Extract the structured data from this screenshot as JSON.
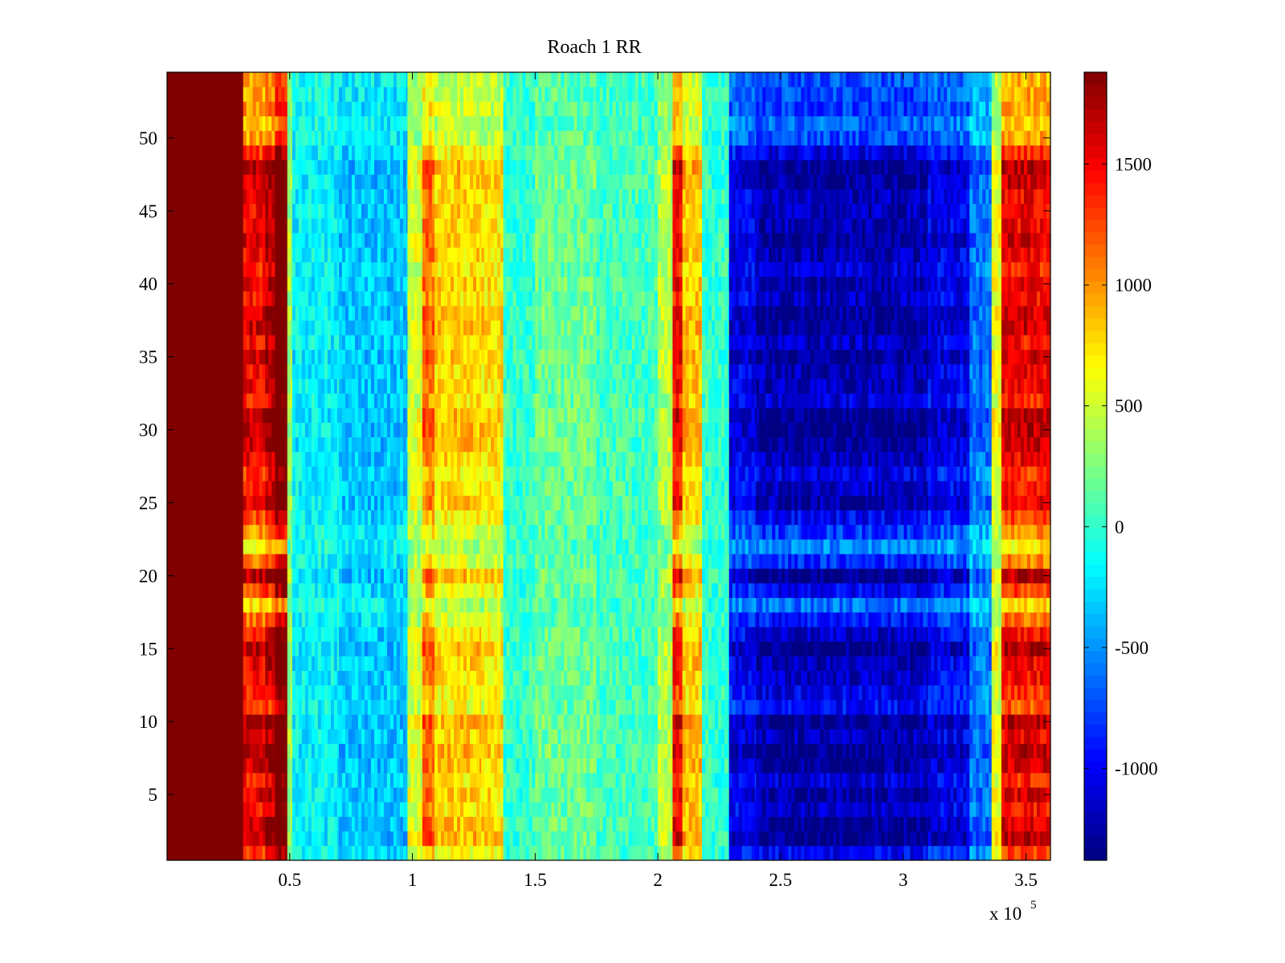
{
  "chart_data": {
    "type": "heatmap",
    "title": "Roach 1 RR",
    "xlabel": "",
    "ylabel": "",
    "x_exponent_label": {
      "base": "x 10",
      "exponent": "5"
    },
    "xlim": [
      0,
      360000
    ],
    "ylim": [
      0.5,
      54.5
    ],
    "n_rows": 54,
    "x_ticks": [
      {
        "value": 50000,
        "label": "0.5"
      },
      {
        "value": 100000,
        "label": "1"
      },
      {
        "value": 150000,
        "label": "1.5"
      },
      {
        "value": 200000,
        "label": "2"
      },
      {
        "value": 250000,
        "label": "2.5"
      },
      {
        "value": 300000,
        "label": "3"
      },
      {
        "value": 350000,
        "label": "3.5"
      }
    ],
    "y_ticks": [
      {
        "value": 5,
        "label": "5"
      },
      {
        "value": 10,
        "label": "10"
      },
      {
        "value": 15,
        "label": "15"
      },
      {
        "value": 20,
        "label": "20"
      },
      {
        "value": 25,
        "label": "25"
      },
      {
        "value": 30,
        "label": "30"
      },
      {
        "value": 35,
        "label": "35"
      },
      {
        "value": 40,
        "label": "40"
      },
      {
        "value": 45,
        "label": "45"
      },
      {
        "value": 50,
        "label": "50"
      }
    ],
    "colorbar": {
      "colormap": "jet",
      "clim": [
        -1380,
        1880
      ],
      "ticks": [
        {
          "value": 1500,
          "label": "1500"
        },
        {
          "value": 1000,
          "label": "1000"
        },
        {
          "value": 500,
          "label": "500"
        },
        {
          "value": 0,
          "label": "0"
        },
        {
          "value": -500,
          "label": "-500"
        },
        {
          "value": -1000,
          "label": "-1000"
        }
      ]
    },
    "column_bands": [
      {
        "x_start": 0,
        "x_end": 31000,
        "value": 1880
      },
      {
        "x_start": 31000,
        "x_end": 40000,
        "value": 1250
      },
      {
        "x_start": 40000,
        "x_end": 44000,
        "value": 1400
      },
      {
        "x_start": 44000,
        "x_end": 49000,
        "value": 1750
      },
      {
        "x_start": 49000,
        "x_end": 51000,
        "value": 300
      },
      {
        "x_start": 51000,
        "x_end": 70000,
        "value": -150
      },
      {
        "x_start": 70000,
        "x_end": 98000,
        "value": -280
      },
      {
        "x_start": 98000,
        "x_end": 104000,
        "value": 450
      },
      {
        "x_start": 104000,
        "x_end": 109000,
        "value": 900
      },
      {
        "x_start": 109000,
        "x_end": 128000,
        "value": 650
      },
      {
        "x_start": 128000,
        "x_end": 137000,
        "value": 600
      },
      {
        "x_start": 137000,
        "x_end": 150000,
        "value": 0
      },
      {
        "x_start": 150000,
        "x_end": 175000,
        "value": 150
      },
      {
        "x_start": 175000,
        "x_end": 200000,
        "value": 50
      },
      {
        "x_start": 200000,
        "x_end": 206000,
        "value": 350
      },
      {
        "x_start": 206000,
        "x_end": 210000,
        "value": 1200
      },
      {
        "x_start": 210000,
        "x_end": 218000,
        "value": 700
      },
      {
        "x_start": 218000,
        "x_end": 229000,
        "value": 0
      },
      {
        "x_start": 229000,
        "x_end": 240000,
        "value": -850
      },
      {
        "x_start": 240000,
        "x_end": 310000,
        "value": -1000
      },
      {
        "x_start": 310000,
        "x_end": 327000,
        "value": -850
      },
      {
        "x_start": 327000,
        "x_end": 336000,
        "value": -500
      },
      {
        "x_start": 336000,
        "x_end": 340000,
        "value": 500
      },
      {
        "x_start": 340000,
        "x_end": 360000,
        "value": 1250
      }
    ],
    "row_values": [
      1.0,
      1.35,
      1.3,
      1.15,
      1.25,
      1.1,
      1.3,
      1.35,
      1.2,
      1.35,
      0.95,
      1.05,
      1.15,
      1.2,
      1.35,
      1.15,
      0.9,
      0.6,
      1.0,
      1.35,
      0.85,
      0.55,
      0.8,
      1.0,
      1.25,
      1.15,
      1.05,
      1.2,
      1.3,
      1.35,
      1.35,
      1.1,
      1.2,
      1.2,
      1.3,
      1.15,
      1.3,
      1.3,
      1.15,
      1.25,
      1.1,
      1.2,
      1.3,
      1.2,
      1.2,
      1.2,
      1.3,
      1.35,
      1.05,
      0.75,
      0.65,
      0.8,
      0.75,
      0.7
    ]
  }
}
